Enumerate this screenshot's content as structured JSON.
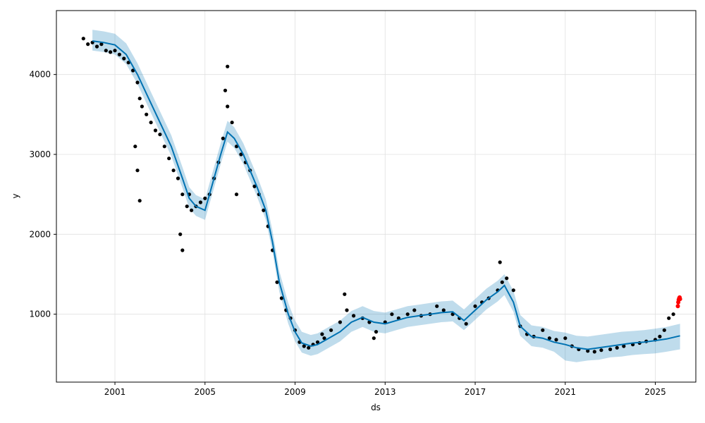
{
  "chart_data": {
    "type": "scatter",
    "title": "",
    "xlabel": "ds",
    "ylabel": "y",
    "x_unit": "year",
    "xlim": [
      1998.4,
      2026.8
    ],
    "ylim": [
      150,
      4800
    ],
    "x_ticks": [
      2001,
      2005,
      2009,
      2013,
      2017,
      2021,
      2025
    ],
    "x_tick_labels": [
      "2001",
      "2005",
      "2009",
      "2013",
      "2017",
      "2021",
      "2025"
    ],
    "y_ticks": [
      1000,
      2000,
      3000,
      4000
    ],
    "y_tick_labels": [
      "1000",
      "2000",
      "3000",
      "4000"
    ],
    "grid": true,
    "legend": "none",
    "colors": {
      "observed": "#000000",
      "forecast_line": "#0072B2",
      "uncertainty_band": "#0072B2",
      "recent_points": "#ff0000",
      "grid": "#e0e0e0"
    },
    "forecast": {
      "x": [
        2000.0,
        2000.5,
        2001.0,
        2001.5,
        2002.0,
        2002.5,
        2003.0,
        2003.5,
        2004.0,
        2004.3,
        2004.6,
        2005.0,
        2005.3,
        2005.7,
        2006.0,
        2006.3,
        2006.7,
        2007.0,
        2007.3,
        2007.7,
        2008.0,
        2008.3,
        2008.7,
        2009.0,
        2009.3,
        2009.7,
        2010.0,
        2010.5,
        2011.0,
        2011.5,
        2012.0,
        2012.5,
        2013.0,
        2013.5,
        2014.0,
        2014.5,
        2015.0,
        2015.5,
        2016.0,
        2016.5,
        2017.0,
        2017.5,
        2018.0,
        2018.3,
        2018.7,
        2019.0,
        2019.5,
        2020.0,
        2020.5,
        2021.0,
        2021.5,
        2022.0,
        2022.5,
        2023.0,
        2023.5,
        2024.0,
        2024.5,
        2025.0,
        2025.5,
        2026.1
      ],
      "yhat": [
        4420,
        4400,
        4370,
        4250,
        4000,
        3700,
        3400,
        3100,
        2700,
        2450,
        2350,
        2300,
        2600,
        3000,
        3280,
        3200,
        3000,
        2800,
        2600,
        2300,
        1900,
        1400,
        1000,
        780,
        640,
        600,
        620,
        700,
        780,
        900,
        960,
        900,
        880,
        920,
        960,
        980,
        1000,
        1020,
        1030,
        920,
        1050,
        1180,
        1280,
        1360,
        1150,
        850,
        720,
        700,
        650,
        620,
        580,
        560,
        580,
        600,
        620,
        640,
        650,
        670,
        690,
        730
      ],
      "yhat_lower": [
        4300,
        4280,
        4250,
        4130,
        3880,
        3580,
        3280,
        2980,
        2580,
        2330,
        2230,
        2180,
        2480,
        2880,
        3160,
        3080,
        2880,
        2680,
        2480,
        2180,
        1780,
        1280,
        880,
        660,
        520,
        480,
        500,
        580,
        660,
        780,
        840,
        780,
        760,
        800,
        840,
        860,
        880,
        900,
        910,
        800,
        930,
        1060,
        1160,
        1240,
        1030,
        730,
        600,
        580,
        530,
        420,
        400,
        420,
        430,
        460,
        470,
        490,
        500,
        510,
        530,
        560
      ],
      "yhat_upper": [
        4560,
        4540,
        4510,
        4390,
        4140,
        3840,
        3540,
        3240,
        2840,
        2590,
        2490,
        2440,
        2740,
        3140,
        3420,
        3340,
        3140,
        2940,
        2740,
        2440,
        2040,
        1540,
        1140,
        920,
        780,
        740,
        760,
        840,
        920,
        1040,
        1100,
        1040,
        1020,
        1060,
        1100,
        1120,
        1140,
        1160,
        1170,
        1060,
        1190,
        1320,
        1420,
        1500,
        1290,
        990,
        860,
        840,
        790,
        770,
        730,
        720,
        740,
        760,
        780,
        790,
        800,
        820,
        840,
        880
      ]
    },
    "observed": {
      "x": [
        1999.6,
        1999.8,
        2000.0,
        2000.2,
        2000.4,
        2000.6,
        2000.8,
        2001.0,
        2001.2,
        2001.4,
        2001.6,
        2001.8,
        2002.0,
        2002.1,
        2002.2,
        2002.4,
        2002.6,
        2002.8,
        2003.0,
        2003.2,
        2003.4,
        2003.6,
        2003.8,
        2004.0,
        2004.2,
        2004.4,
        2004.6,
        2004.8,
        2005.0,
        2005.2,
        2005.4,
        2005.6,
        2005.8,
        2006.0,
        2006.2,
        2006.4,
        2006.6,
        2006.8,
        2007.0,
        2007.2,
        2007.4,
        2007.6,
        2007.8,
        2008.0,
        2008.2,
        2008.4,
        2008.6,
        2008.8,
        2009.0,
        2009.2,
        2009.4,
        2009.6,
        2009.8,
        2010.0,
        2010.3,
        2010.6,
        2011.0,
        2011.3,
        2011.6,
        2012.0,
        2012.3,
        2012.6,
        2013.0,
        2013.3,
        2013.6,
        2014.0,
        2014.3,
        2014.6,
        2015.0,
        2015.3,
        2015.6,
        2016.0,
        2016.3,
        2016.6,
        2017.0,
        2017.3,
        2017.6,
        2018.0,
        2018.2,
        2018.4,
        2018.7,
        2019.0,
        2019.3,
        2019.6,
        2020.0,
        2020.3,
        2020.6,
        2021.0,
        2021.3,
        2021.6,
        2022.0,
        2022.3,
        2022.6,
        2023.0,
        2023.3,
        2023.6,
        2024.0,
        2024.3,
        2024.6,
        2025.0,
        2025.2,
        2025.4,
        2025.6,
        2025.8,
        2001.9,
        2002.0,
        2002.1,
        2003.9,
        2004.0,
        2005.9,
        2006.0,
        2004.3,
        2011.2,
        2018.1,
        2012.5,
        2010.2,
        2006.4
      ],
      "y": [
        4450,
        4380,
        4400,
        4350,
        4380,
        4300,
        4280,
        4300,
        4250,
        4200,
        4150,
        4050,
        3900,
        3700,
        3600,
        3500,
        3400,
        3300,
        3250,
        3100,
        2950,
        2800,
        2700,
        2500,
        2350,
        2300,
        2350,
        2400,
        2450,
        2500,
        2700,
        2900,
        3200,
        3600,
        3400,
        3100,
        3000,
        2900,
        2800,
        2600,
        2500,
        2300,
        2100,
        1800,
        1400,
        1200,
        1050,
        950,
        800,
        650,
        600,
        580,
        620,
        650,
        700,
        800,
        900,
        1050,
        980,
        950,
        900,
        780,
        900,
        1000,
        950,
        1000,
        1050,
        980,
        1000,
        1100,
        1050,
        1000,
        950,
        880,
        1100,
        1150,
        1200,
        1300,
        1400,
        1450,
        1300,
        850,
        750,
        720,
        800,
        700,
        680,
        700,
        600,
        560,
        540,
        530,
        550,
        560,
        580,
        600,
        620,
        640,
        660,
        680,
        720,
        800,
        950,
        1000,
        3100,
        2800,
        2420,
        2000,
        1800,
        3800,
        4100,
        2500,
        1250,
        1650,
        700,
        750,
        2500
      ]
    },
    "recent": {
      "x": [
        2026.0,
        2026.02,
        2026.04,
        2026.06,
        2026.08,
        2026.1
      ],
      "y": [
        1100,
        1150,
        1180,
        1200,
        1210,
        1190
      ]
    }
  }
}
